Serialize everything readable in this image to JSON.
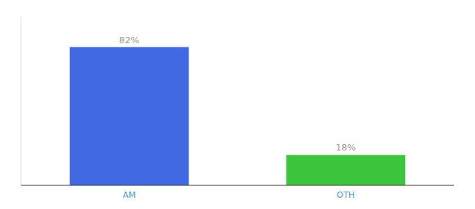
{
  "chart_data": {
    "type": "bar",
    "categories": [
      "AM",
      "OTH"
    ],
    "values": [
      82,
      18
    ],
    "value_labels": [
      "82%",
      "18%"
    ],
    "colors": [
      "#4169e1",
      "#3dc53d"
    ],
    "ylim": [
      0,
      100
    ],
    "data_labels": true,
    "tick_labels": "x"
  }
}
